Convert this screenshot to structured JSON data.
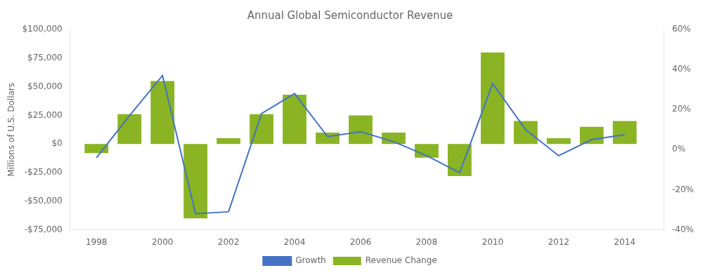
{
  "chart_data": {
    "type": "bar",
    "title": "Annual Global Semiconductor Revenue",
    "ylabel": "Millions of U.S. Dollars",
    "x": [
      1998,
      1999,
      2000,
      2001,
      2002,
      2003,
      2004,
      2005,
      2006,
      2007,
      2008,
      2009,
      2010,
      2011,
      2012,
      2013,
      2014
    ],
    "xlim": [
      1997.2,
      2015.2
    ],
    "xticks": [
      1998,
      2000,
      2002,
      2004,
      2006,
      2008,
      2010,
      2012,
      2014
    ],
    "ylim": [
      -75000,
      100000
    ],
    "yticks": [
      {
        "value": -75000,
        "label": "-$75,000"
      },
      {
        "value": -50000,
        "label": "-$50,000"
      },
      {
        "value": -25000,
        "label": "-$25,000"
      },
      {
        "value": 0,
        "label": "$0"
      },
      {
        "value": 25000,
        "label": "$25,000"
      },
      {
        "value": 50000,
        "label": "$50,000"
      },
      {
        "value": 75000,
        "label": "$75,000"
      },
      {
        "value": 100000,
        "label": "$100,000"
      }
    ],
    "y2lim": [
      -0.4,
      0.6
    ],
    "y2ticks": [
      {
        "value": -0.4,
        "label": "-40%"
      },
      {
        "value": -0.2,
        "label": "-20%"
      },
      {
        "value": 0.0,
        "label": "0%"
      },
      {
        "value": 0.2,
        "label": "20%"
      },
      {
        "value": 0.4,
        "label": "40%"
      },
      {
        "value": 0.6,
        "label": "60%"
      }
    ],
    "grid": false,
    "legend": "bottom",
    "series": [
      {
        "name": "Revenue Change",
        "type": "bar",
        "color": "#8ab424",
        "values": [
          -8000,
          26000,
          55000,
          -65000,
          5000,
          26000,
          43000,
          10000,
          25000,
          10000,
          -12000,
          -28000,
          80000,
          20000,
          5000,
          15000,
          20000
        ]
      },
      {
        "name": "Growth",
        "type": "line",
        "color": "#4472c4",
        "axis": "y2",
        "values": [
          -0.04,
          0.17,
          0.37,
          -0.32,
          -0.31,
          0.18,
          0.28,
          0.065,
          0.09,
          0.04,
          -0.03,
          -0.115,
          0.33,
          0.1,
          -0.03,
          0.05,
          0.075
        ]
      }
    ]
  }
}
